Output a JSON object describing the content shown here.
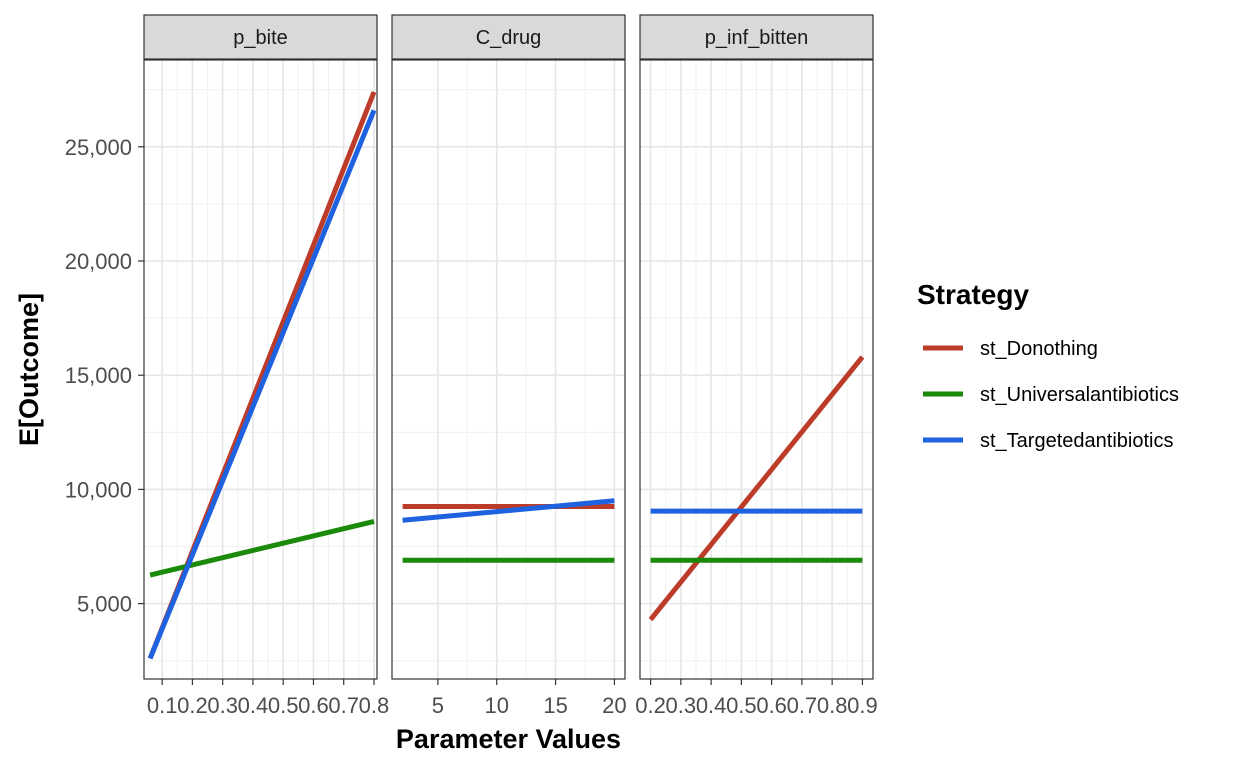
{
  "chart_data": {
    "type": "line",
    "facet_by": "parameter",
    "xlabel": "Parameter Values",
    "ylabel": "E[Outcome]",
    "ylim": [
      1700,
      28800
    ],
    "yticks": [
      5000,
      10000,
      15000,
      20000,
      25000
    ],
    "ytick_labels": [
      "5,000",
      "10,000",
      "15,000",
      "20,000",
      "25,000"
    ],
    "grid": true,
    "legend": {
      "title": "Strategy",
      "position": "right",
      "entries": [
        {
          "name": "st_Donothing",
          "color": "#BC3C29"
        },
        {
          "name": "st_Universalantibiotics",
          "color": "#1B8A0A"
        },
        {
          "name": "st_Targetedantibiotics",
          "color": "#1F62E0"
        }
      ]
    },
    "panels": [
      {
        "strip": "p_bite",
        "xlim": [
          0.04,
          0.81
        ],
        "xticks": [
          0.1,
          0.2,
          0.3,
          0.4,
          0.5,
          0.6,
          0.7,
          0.8
        ],
        "xtick_labels": [
          "0.1",
          "0.2",
          "0.3",
          "0.4",
          "0.5",
          "0.6",
          "0.7",
          "0.8"
        ],
        "series": [
          {
            "name": "st_Donothing",
            "x": [
              0.06,
              0.8
            ],
            "y": [
              2600,
              27400
            ]
          },
          {
            "name": "st_Universalantibiotics",
            "x": [
              0.06,
              0.8
            ],
            "y": [
              6250,
              8600
            ]
          },
          {
            "name": "st_Targetedantibiotics",
            "x": [
              0.06,
              0.8
            ],
            "y": [
              2600,
              26600
            ]
          }
        ]
      },
      {
        "strip": "C_drug",
        "xlim": [
          1.1,
          20.9
        ],
        "xticks": [
          5,
          10,
          15,
          20
        ],
        "xtick_labels": [
          "5",
          "10",
          "15",
          "20"
        ],
        "series": [
          {
            "name": "st_Donothing",
            "x": [
              2,
              20
            ],
            "y": [
              9250,
              9250
            ]
          },
          {
            "name": "st_Universalantibiotics",
            "x": [
              2,
              20
            ],
            "y": [
              6900,
              6900
            ]
          },
          {
            "name": "st_Targetedantibiotics",
            "x": [
              2,
              20
            ],
            "y": [
              8650,
              9500
            ]
          }
        ]
      },
      {
        "strip": "p_inf_bitten",
        "xlim": [
          0.165,
          0.935
        ],
        "xticks": [
          0.2,
          0.3,
          0.4,
          0.5,
          0.6,
          0.7,
          0.8,
          0.9
        ],
        "xtick_labels": [
          "0.2",
          "0.3",
          "0.4",
          "0.5",
          "0.6",
          "0.7",
          "0.8",
          "0.9"
        ],
        "series": [
          {
            "name": "st_Donothing",
            "x": [
              0.2,
              0.9
            ],
            "y": [
              4300,
              15800
            ]
          },
          {
            "name": "st_Universalantibiotics",
            "x": [
              0.2,
              0.9
            ],
            "y": [
              6900,
              6900
            ]
          },
          {
            "name": "st_Targetedantibiotics",
            "x": [
              0.2,
              0.9
            ],
            "y": [
              9050,
              9050
            ]
          }
        ]
      }
    ]
  }
}
